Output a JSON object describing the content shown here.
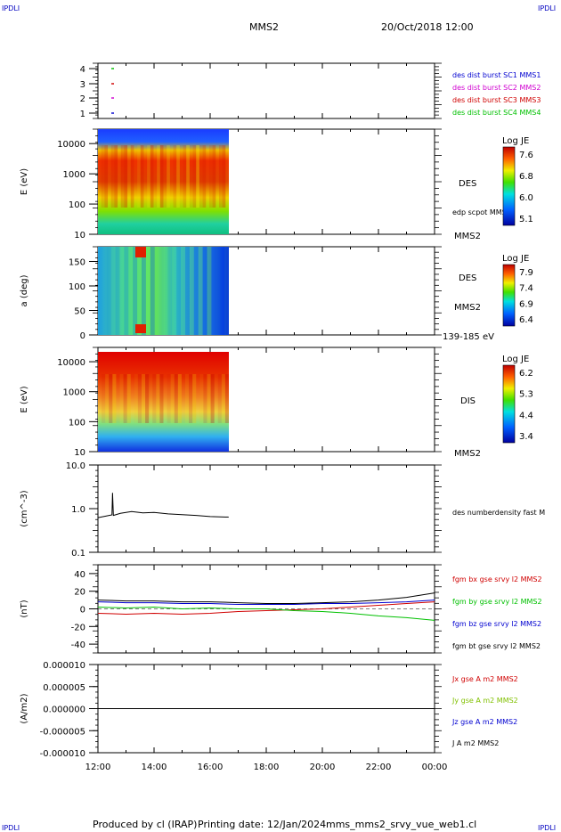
{
  "header": {
    "corner_label": "IPDLI",
    "spacecraft": "MMS2",
    "datetime": "20/Oct/2018 12:00"
  },
  "footer": {
    "produced": "Produced by cl (IRAP)",
    "printing": "Printing date: 12/Jan/2024",
    "file": "mms_mms2_srvy_vue_web1.cl"
  },
  "chart_data": {
    "type": "multi-panel",
    "x_axis": {
      "range": [
        "12:00",
        "00:00"
      ],
      "ticks": [
        "12:00",
        "14:00",
        "16:00",
        "18:00",
        "20:00",
        "22:00",
        "00:00"
      ],
      "data_end": "16:40"
    },
    "panels": [
      {
        "id": "coverage",
        "type": "scatter",
        "y_ticks": [
          "4",
          "3",
          "2",
          "1"
        ],
        "legend": [
          {
            "label": "des dist burst SC1 MMS1",
            "color": "#0000d0"
          },
          {
            "label": "des dist burst SC2 MMS2",
            "color": "#d000d0"
          },
          {
            "label": "des dist burst SC3 MMS3",
            "color": "#d00000"
          },
          {
            "label": "des dist burst SC4 MMS4",
            "color": "#00c000"
          }
        ]
      },
      {
        "id": "des-energy",
        "type": "heatmap",
        "ylabel": "E (eV)",
        "y_ticks": [
          "10000",
          "1000",
          "100",
          "10"
        ],
        "ylim": [
          10,
          30000
        ],
        "label": "DES",
        "sub_label": "edp scpot MMS2",
        "sc_label": "MMS2",
        "colorbar": {
          "title": "Log JE",
          "ticks": [
            "7.6",
            "6.8",
            "6.0",
            "5.1"
          ]
        }
      },
      {
        "id": "des-pitch",
        "type": "heatmap",
        "ylabel": "a (deg)",
        "y_ticks": [
          "150",
          "100",
          "50",
          "0"
        ],
        "ylim": [
          0,
          180
        ],
        "label": "DES",
        "sc_label": "MMS2",
        "energy_band": "139-185 eV",
        "colorbar": {
          "title": "Log JE",
          "ticks": [
            "7.9",
            "7.4",
            "6.9",
            "6.4"
          ]
        }
      },
      {
        "id": "dis-energy",
        "type": "heatmap",
        "ylabel": "E (eV)",
        "y_ticks": [
          "10000",
          "1000",
          "100",
          "10"
        ],
        "ylim": [
          10,
          30000
        ],
        "label": "DIS",
        "sc_label": "MMS2",
        "colorbar": {
          "title": "Log JE",
          "ticks": [
            "6.2",
            "5.3",
            "4.4",
            "3.4"
          ]
        }
      },
      {
        "id": "density",
        "type": "line",
        "ylabel": "(cm^-3)",
        "y_ticks": [
          "10.0",
          "1.0",
          "0.1"
        ],
        "ylim": [
          0.1,
          10
        ],
        "legend": [
          {
            "label": "des numberdensity fast M",
            "color": "#000000"
          }
        ],
        "series": [
          {
            "color": "#000000",
            "x_hours": [
              12.0,
              12.3,
              12.5,
              12.52,
              12.55,
              12.8,
              13.2,
              13.6,
              14.0,
              14.5,
              15.0,
              15.5,
              16.0,
              16.66
            ],
            "values": [
              0.62,
              0.68,
              0.72,
              2.3,
              0.7,
              0.78,
              0.86,
              0.8,
              0.82,
              0.76,
              0.73,
              0.7,
              0.66,
              0.64
            ]
          }
        ]
      },
      {
        "id": "magnetic-field",
        "type": "line",
        "ylabel": "(nT)",
        "y_ticks": [
          "40",
          "20",
          "0",
          "-20",
          "-40"
        ],
        "ylim": [
          -50,
          50
        ],
        "legend": [
          {
            "label": "fgm bx gse srvy l2 MMS2",
            "color": "#d00000"
          },
          {
            "label": "fgm by gse srvy l2 MMS2",
            "color": "#00c000"
          },
          {
            "label": "fgm bz gse srvy l2 MMS2",
            "color": "#0000d0"
          },
          {
            "label": "fgm bt gse srvy l2 MMS2",
            "color": "#000000"
          }
        ],
        "series": [
          {
            "color": "#d00000",
            "x_hours": [
              12,
              13,
              14,
              15,
              16,
              17,
              18,
              19,
              20,
              21,
              22,
              23,
              24
            ],
            "values": [
              -5,
              -6,
              -5,
              -6,
              -5,
              -3,
              -2,
              -1,
              0,
              2,
              4,
              6,
              8
            ]
          },
          {
            "color": "#00c000",
            "x_hours": [
              12,
              13,
              14,
              15,
              16,
              17,
              18,
              19,
              20,
              21,
              22,
              23,
              24
            ],
            "values": [
              2,
              1,
              2,
              0,
              1,
              0,
              0,
              -2,
              -3,
              -5,
              -8,
              -10,
              -13
            ]
          },
          {
            "color": "#0000d0",
            "x_hours": [
              12,
              13,
              14,
              15,
              16,
              17,
              18,
              19,
              20,
              21,
              22,
              23,
              24
            ],
            "values": [
              8,
              7,
              7,
              6,
              6,
              5,
              5,
              5,
              6,
              6,
              7,
              8,
              10
            ]
          },
          {
            "color": "#000000",
            "x_hours": [
              12,
              13,
              14,
              15,
              16,
              17,
              18,
              19,
              20,
              21,
              22,
              23,
              24
            ],
            "values": [
              10,
              9,
              9,
              8,
              8,
              7,
              6,
              6,
              7,
              8,
              10,
              13,
              18
            ]
          }
        ]
      },
      {
        "id": "current-density",
        "type": "line",
        "ylabel": "(A/m2)",
        "y_ticks": [
          "0.000010",
          "0.000005",
          "0.000000",
          "-0.000005",
          "-0.000010"
        ],
        "ylim": [
          -1e-05,
          1e-05
        ],
        "legend": [
          {
            "label": "Jx gse A m2 MMS2",
            "color": "#d00000"
          },
          {
            "label": "Jy gse A m2 MMS2",
            "color": "#80c000"
          },
          {
            "label": "Jz gse A m2 MMS2",
            "color": "#0000d0"
          },
          {
            "label": "J A m2 MMS2",
            "color": "#000000"
          }
        ],
        "series": [
          {
            "color": "#000000",
            "x_hours": [
              12,
              24
            ],
            "values": [
              0,
              0
            ]
          }
        ]
      }
    ]
  }
}
